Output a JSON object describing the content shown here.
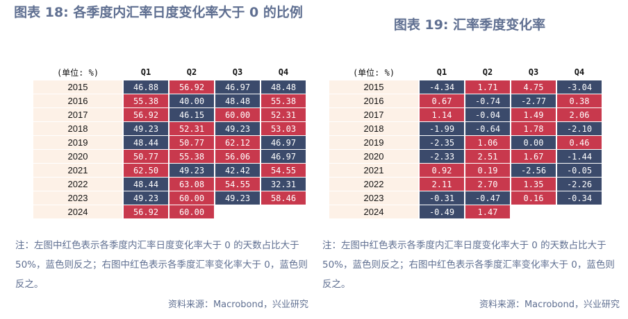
{
  "left": {
    "title": "图表 18: 各季度内汇率日度变化率大于 0 的比例",
    "unit_label": "(单位: %)",
    "quarters": [
      "Q1",
      "Q2",
      "Q3",
      "Q4"
    ],
    "rows": [
      {
        "year": "2015",
        "values": [
          "46.88",
          "56.92",
          "46.97",
          "48.48"
        ]
      },
      {
        "year": "2016",
        "values": [
          "55.38",
          "40.00",
          "48.48",
          "55.38"
        ]
      },
      {
        "year": "2017",
        "values": [
          "56.92",
          "46.15",
          "60.00",
          "52.31"
        ]
      },
      {
        "year": "2018",
        "values": [
          "49.23",
          "52.31",
          "49.23",
          "53.03"
        ]
      },
      {
        "year": "2019",
        "values": [
          "48.44",
          "50.77",
          "62.12",
          "46.97"
        ]
      },
      {
        "year": "2020",
        "values": [
          "50.77",
          "55.38",
          "56.06",
          "46.97"
        ]
      },
      {
        "year": "2021",
        "values": [
          "62.50",
          "49.23",
          "42.42",
          "54.55"
        ]
      },
      {
        "year": "2022",
        "values": [
          "48.44",
          "63.08",
          "54.55",
          "32.31"
        ]
      },
      {
        "year": "2023",
        "values": [
          "49.23",
          "60.00",
          "49.23",
          "58.46"
        ]
      },
      {
        "year": "2024",
        "values": [
          "56.92",
          "60.00",
          "",
          ""
        ]
      }
    ],
    "note": "注：左图中红色表示各季度内汇率日度变化率大于 0 的天数占比大于 50%，蓝色则反之；右图中红色表示各季度汇率变化率大于 0，蓝色则反之。",
    "source": "资料来源：Macrobond，兴业研究"
  },
  "right": {
    "title": "图表 19: 汇率季度变化率",
    "unit_label": "(单位: %)",
    "quarters": [
      "Q1",
      "Q2",
      "Q3",
      "Q4"
    ],
    "rows": [
      {
        "year": "2015",
        "values": [
          "-4.34",
          "1.71",
          "4.75",
          "-3.04"
        ]
      },
      {
        "year": "2016",
        "values": [
          "0.67",
          "-0.74",
          "-2.77",
          "0.38"
        ]
      },
      {
        "year": "2017",
        "values": [
          "1.14",
          "-0.04",
          "1.49",
          "2.06"
        ]
      },
      {
        "year": "2018",
        "values": [
          "-1.99",
          "-0.64",
          "1.78",
          "-2.10"
        ]
      },
      {
        "year": "2019",
        "values": [
          "-2.35",
          "1.06",
          "0.00",
          "0.46"
        ]
      },
      {
        "year": "2020",
        "values": [
          "-2.33",
          "2.51",
          "1.67",
          "-1.44"
        ]
      },
      {
        "year": "2021",
        "values": [
          "0.92",
          "0.19",
          "-2.56",
          "-0.05"
        ]
      },
      {
        "year": "2022",
        "values": [
          "2.11",
          "2.70",
          "1.35",
          "-2.26"
        ]
      },
      {
        "year": "2023",
        "values": [
          "-0.31",
          "-0.47",
          "0.16",
          "-0.34"
        ]
      },
      {
        "year": "2024",
        "values": [
          "-0.49",
          "1.47",
          "",
          ""
        ]
      }
    ],
    "note": "注：左图中红色表示各季度内汇率日度变化率大于 0 的天数占比大于 50%，蓝色则反之；右图中红色表示各季度汇率变化率大于 0，蓝色则反之。",
    "source": "资料来源：Macrobond，兴业研究"
  },
  "colors": {
    "positive": "#c8394d",
    "negative": "#3b4a6b",
    "year_bg": "#fdf1e7",
    "title": "#5f6f91"
  }
}
